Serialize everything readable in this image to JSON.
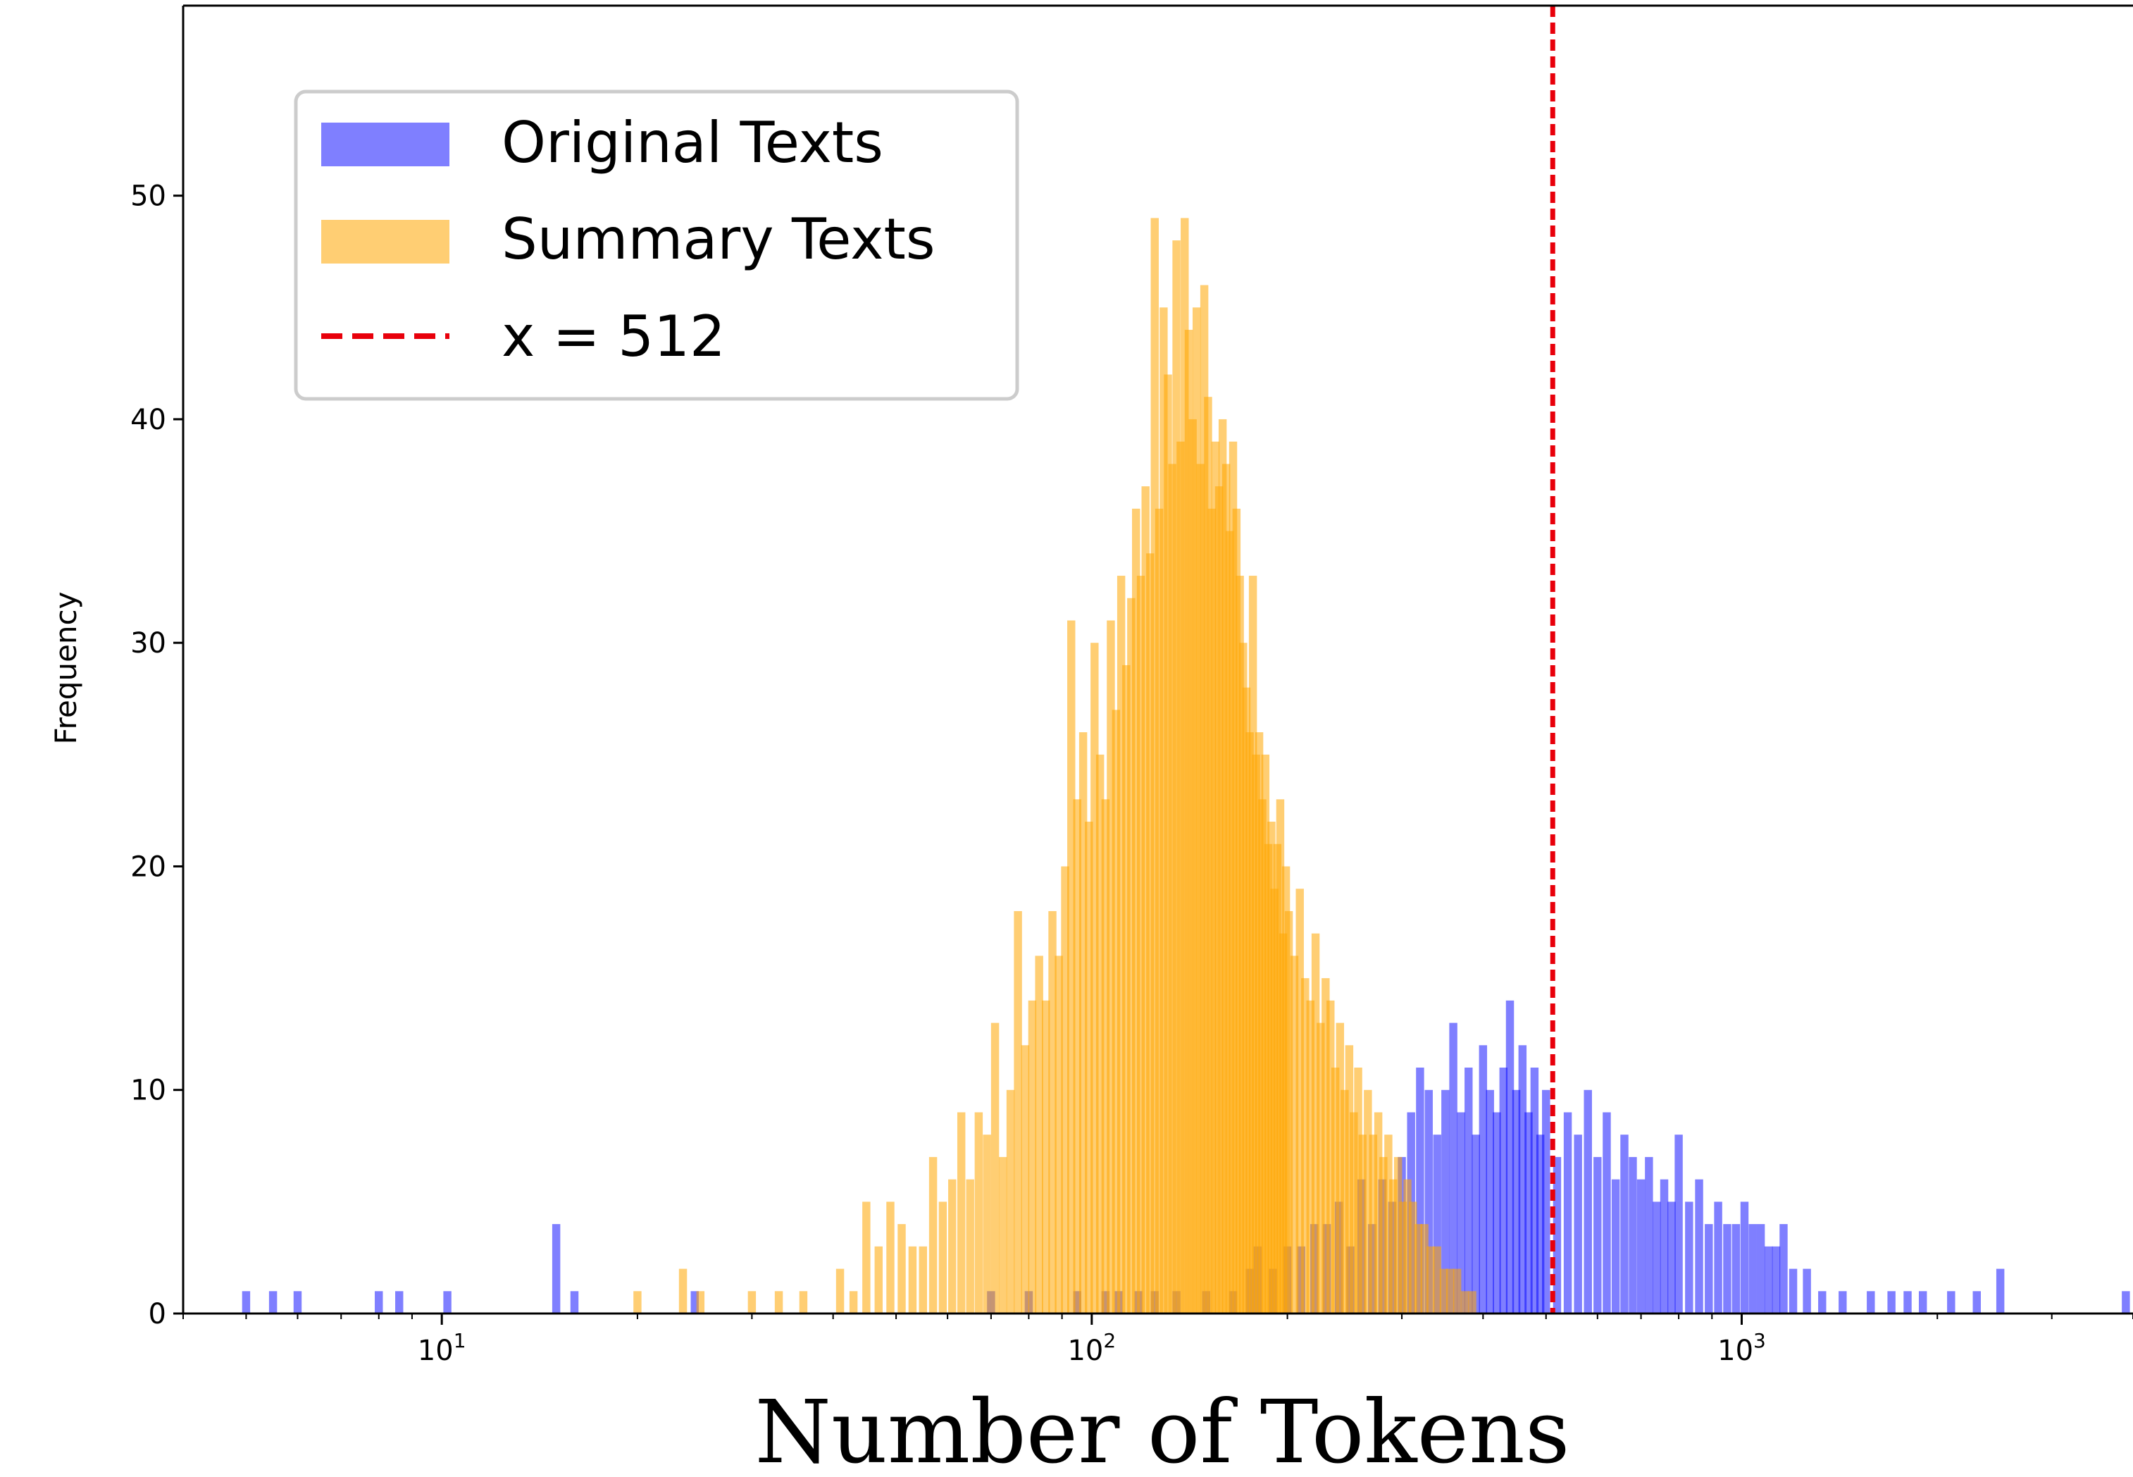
{
  "chart_data": {
    "type": "bar",
    "xlabel": "Number of Tokens",
    "ylabel": "Frequency",
    "x_scale": "log",
    "xlim": [
      4,
      4000
    ],
    "ylim": [
      0,
      58.5
    ],
    "y_ticks": [
      0,
      10,
      20,
      30,
      40,
      50
    ],
    "x_ticks": [
      {
        "value": 10,
        "base": "10",
        "exp": "1"
      },
      {
        "value": 100,
        "base": "10",
        "exp": "2"
      },
      {
        "value": 1000,
        "base": "10",
        "exp": "3"
      }
    ],
    "legend_position": "top-left",
    "grid": false,
    "reference_line": {
      "x": 512,
      "label": "x = 512",
      "color": "#e8000b",
      "style": "dashed"
    },
    "series": [
      {
        "name": "Original Texts",
        "color": "#0000ff",
        "opacity": 0.5,
        "bins": [
          [
            5,
            1
          ],
          [
            5.5,
            1
          ],
          [
            6,
            1
          ],
          [
            8,
            1
          ],
          [
            8.6,
            1
          ],
          [
            10.2,
            1
          ],
          [
            15,
            4
          ],
          [
            16,
            1
          ],
          [
            24.5,
            1
          ],
          [
            70,
            1
          ],
          [
            80,
            1
          ],
          [
            95,
            1
          ],
          [
            105,
            1
          ],
          [
            110,
            1
          ],
          [
            118,
            1
          ],
          [
            125,
            1
          ],
          [
            135,
            1
          ],
          [
            150,
            1
          ],
          [
            165,
            1
          ],
          [
            175,
            2
          ],
          [
            180,
            3
          ],
          [
            190,
            2
          ],
          [
            200,
            3
          ],
          [
            210,
            3
          ],
          [
            220,
            4
          ],
          [
            230,
            4
          ],
          [
            240,
            5
          ],
          [
            250,
            3
          ],
          [
            260,
            6
          ],
          [
            270,
            4
          ],
          [
            280,
            6
          ],
          [
            290,
            5
          ],
          [
            300,
            7
          ],
          [
            310,
            9
          ],
          [
            320,
            11
          ],
          [
            330,
            10
          ],
          [
            340,
            8
          ],
          [
            350,
            10
          ],
          [
            360,
            13
          ],
          [
            370,
            9
          ],
          [
            380,
            11
          ],
          [
            390,
            8
          ],
          [
            400,
            12
          ],
          [
            410,
            10
          ],
          [
            420,
            9
          ],
          [
            430,
            11
          ],
          [
            440,
            14
          ],
          [
            450,
            10
          ],
          [
            460,
            12
          ],
          [
            470,
            9
          ],
          [
            480,
            11
          ],
          [
            490,
            8
          ],
          [
            500,
            10
          ],
          [
            520,
            7
          ],
          [
            540,
            9
          ],
          [
            560,
            8
          ],
          [
            580,
            10
          ],
          [
            600,
            7
          ],
          [
            620,
            9
          ],
          [
            640,
            6
          ],
          [
            660,
            8
          ],
          [
            680,
            7
          ],
          [
            700,
            6
          ],
          [
            720,
            7
          ],
          [
            740,
            5
          ],
          [
            760,
            6
          ],
          [
            780,
            5
          ],
          [
            800,
            8
          ],
          [
            830,
            5
          ],
          [
            860,
            6
          ],
          [
            890,
            4
          ],
          [
            920,
            5
          ],
          [
            950,
            4
          ],
          [
            980,
            4
          ],
          [
            1010,
            5
          ],
          [
            1040,
            4
          ],
          [
            1070,
            4
          ],
          [
            1100,
            3
          ],
          [
            1130,
            3
          ],
          [
            1160,
            4
          ],
          [
            1200,
            2
          ],
          [
            1260,
            2
          ],
          [
            1330,
            1
          ],
          [
            1430,
            1
          ],
          [
            1580,
            1
          ],
          [
            1700,
            1
          ],
          [
            1800,
            1
          ],
          [
            1900,
            1
          ],
          [
            2100,
            1
          ],
          [
            2300,
            1
          ],
          [
            2500,
            2
          ],
          [
            3900,
            1
          ]
        ]
      },
      {
        "name": "Summary Texts",
        "color": "#ffa500",
        "opacity": 0.55,
        "bins": [
          [
            20,
            1
          ],
          [
            23.5,
            2
          ],
          [
            25,
            1
          ],
          [
            30,
            1
          ],
          [
            33,
            1
          ],
          [
            36,
            1
          ],
          [
            41,
            2
          ],
          [
            43,
            1
          ],
          [
            45,
            5
          ],
          [
            47,
            3
          ],
          [
            49,
            5
          ],
          [
            51,
            4
          ],
          [
            53,
            3
          ],
          [
            55,
            3
          ],
          [
            57,
            7
          ],
          [
            59,
            5
          ],
          [
            61,
            6
          ],
          [
            63,
            9
          ],
          [
            65,
            6
          ],
          [
            67,
            9
          ],
          [
            69,
            8
          ],
          [
            71,
            13
          ],
          [
            73,
            7
          ],
          [
            75,
            10
          ],
          [
            77,
            18
          ],
          [
            79,
            12
          ],
          [
            81,
            14
          ],
          [
            83,
            16
          ],
          [
            85,
            14
          ],
          [
            87,
            18
          ],
          [
            89,
            16
          ],
          [
            91,
            20
          ],
          [
            93,
            31
          ],
          [
            95,
            23
          ],
          [
            97,
            26
          ],
          [
            99,
            22
          ],
          [
            101,
            30
          ],
          [
            103,
            25
          ],
          [
            105,
            23
          ],
          [
            107,
            31
          ],
          [
            109,
            27
          ],
          [
            111,
            33
          ],
          [
            113,
            29
          ],
          [
            115,
            32
          ],
          [
            117,
            36
          ],
          [
            119,
            33
          ],
          [
            121,
            37
          ],
          [
            123,
            34
          ],
          [
            125,
            49
          ],
          [
            127,
            36
          ],
          [
            129,
            45
          ],
          [
            131,
            42
          ],
          [
            133,
            38
          ],
          [
            135,
            48
          ],
          [
            137,
            39
          ],
          [
            139,
            49
          ],
          [
            141,
            44
          ],
          [
            143,
            40
          ],
          [
            145,
            45
          ],
          [
            147,
            38
          ],
          [
            149,
            46
          ],
          [
            151,
            41
          ],
          [
            153,
            36
          ],
          [
            155,
            39
          ],
          [
            157,
            37
          ],
          [
            159,
            40
          ],
          [
            161,
            38
          ],
          [
            163,
            35
          ],
          [
            165,
            39
          ],
          [
            167,
            36
          ],
          [
            169,
            33
          ],
          [
            171,
            30
          ],
          [
            173,
            28
          ],
          [
            175,
            26
          ],
          [
            177,
            33
          ],
          [
            179,
            25
          ],
          [
            181,
            26
          ],
          [
            183,
            23
          ],
          [
            185,
            25
          ],
          [
            187,
            21
          ],
          [
            189,
            22
          ],
          [
            191,
            19
          ],
          [
            193,
            21
          ],
          [
            195,
            23
          ],
          [
            197,
            17
          ],
          [
            199,
            20
          ],
          [
            201,
            18
          ],
          [
            205,
            16
          ],
          [
            209,
            19
          ],
          [
            213,
            15
          ],
          [
            217,
            14
          ],
          [
            221,
            17
          ],
          [
            225,
            13
          ],
          [
            229,
            15
          ],
          [
            233,
            14
          ],
          [
            237,
            11
          ],
          [
            241,
            13
          ],
          [
            245,
            10
          ],
          [
            249,
            12
          ],
          [
            253,
            9
          ],
          [
            257,
            11
          ],
          [
            261,
            8
          ],
          [
            266,
            10
          ],
          [
            271,
            8
          ],
          [
            276,
            9
          ],
          [
            281,
            7
          ],
          [
            286,
            8
          ],
          [
            291,
            6
          ],
          [
            296,
            7
          ],
          [
            301,
            5
          ],
          [
            306,
            6
          ],
          [
            312,
            5
          ],
          [
            318,
            4
          ],
          [
            325,
            4
          ],
          [
            332,
            3
          ],
          [
            340,
            3
          ],
          [
            348,
            2
          ],
          [
            356,
            2
          ],
          [
            365,
            2
          ],
          [
            375,
            1
          ],
          [
            385,
            1
          ]
        ]
      }
    ]
  }
}
